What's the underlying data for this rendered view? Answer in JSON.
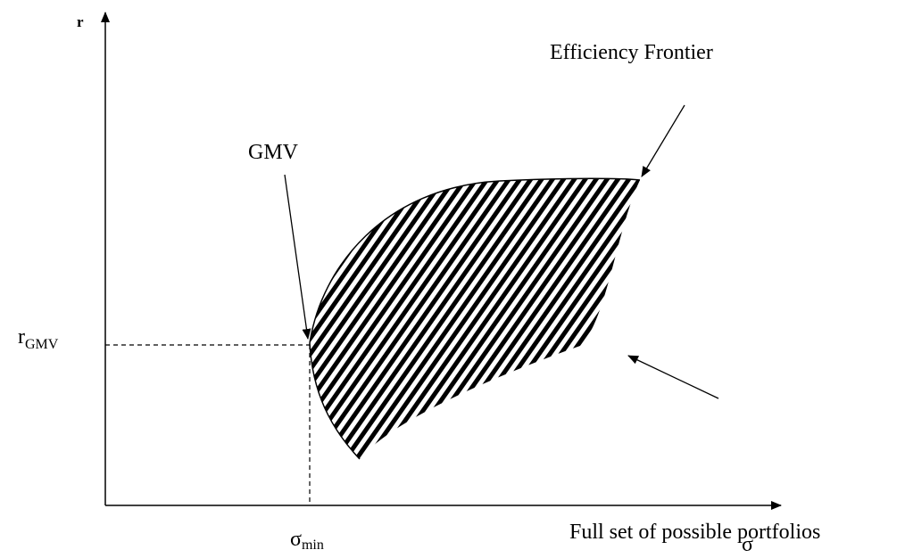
{
  "axes": {
    "y_label": "r",
    "x_label": "σ"
  },
  "marks": {
    "r_gmv": {
      "base": "r",
      "sub": "GMV"
    },
    "sigma_min": {
      "base": "σ",
      "sub": "min"
    }
  },
  "annotations": {
    "gmv": "GMV",
    "frontier": "Efficiency Frontier",
    "full_set": "Full set of possible portfolios"
  }
}
